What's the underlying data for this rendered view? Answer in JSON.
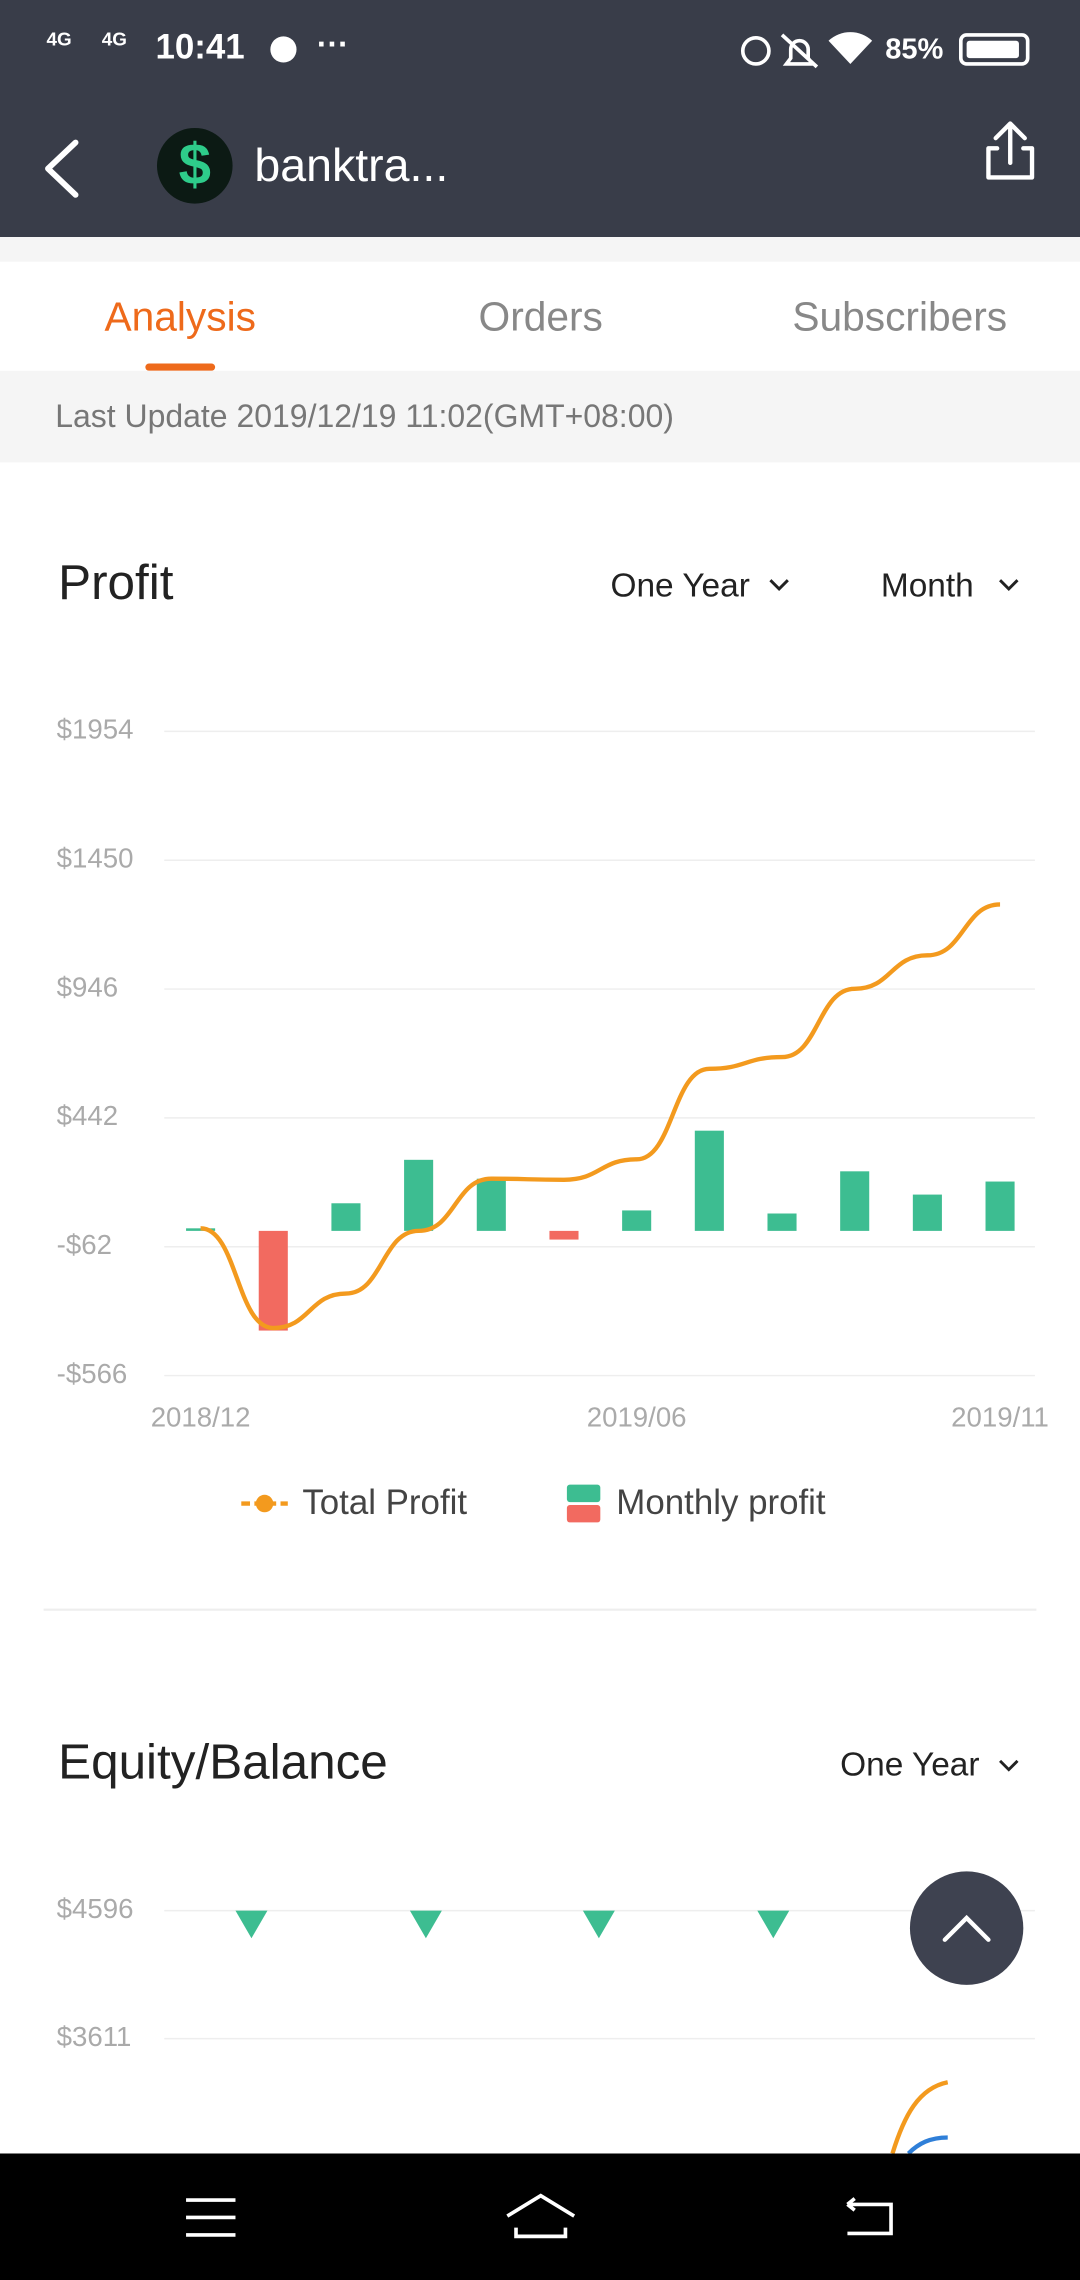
{
  "status_bar": {
    "network": [
      "4G",
      "4G"
    ],
    "time": "10:41",
    "more": "···",
    "battery": "85%"
  },
  "header": {
    "title": "banktra..."
  },
  "tabs": {
    "items": [
      "Analysis",
      "Orders",
      "Subscribers"
    ],
    "active": 0
  },
  "last_update": "Last Update 2019/12/19 11:02(GMT+08:00)",
  "profit": {
    "filters": [
      "One Year",
      "Month"
    ],
    "chart_data": {
      "type": "bar",
      "title": "Profit",
      "categories": [
        "2018/12",
        null,
        null,
        null,
        null,
        null,
        "2019/06",
        null,
        null,
        null,
        null,
        "2019/11"
      ],
      "series": [
        {
          "name": "Total Profit",
          "type": "line",
          "color": "#f39a1e",
          "values": [
            10,
            -380,
            -245,
            0,
            204,
            200,
            280,
            634,
            680,
            947,
            1078,
            1277
          ]
        },
        {
          "name": "Monthly profit",
          "type": "bar",
          "color": "#3dbd91",
          "negative_color": "#f26a60",
          "values": [
            10,
            -390,
            108,
            278,
            204,
            -34,
            80,
            392,
            68,
            233,
            142,
            193
          ]
        }
      ],
      "ylim": [
        -566,
        1954
      ],
      "yticks": [
        {
          "value": -566,
          "label": "-$566"
        },
        {
          "value": -62,
          "label": "-$62"
        },
        {
          "value": 442,
          "label": "$442"
        },
        {
          "value": 946,
          "label": "$946"
        },
        {
          "value": 1450,
          "label": "$1450"
        },
        {
          "value": 1954,
          "label": "$1954"
        }
      ],
      "grid": true
    }
  },
  "equity": {
    "filters": [
      "One Year"
    ],
    "chart_data": {
      "type": "line",
      "title": "Equity/Balance",
      "yticks": [
        {
          "value": 4596,
          "label": "$4596"
        },
        {
          "value": 3611,
          "label": "$3611"
        }
      ],
      "grid": true
    }
  }
}
